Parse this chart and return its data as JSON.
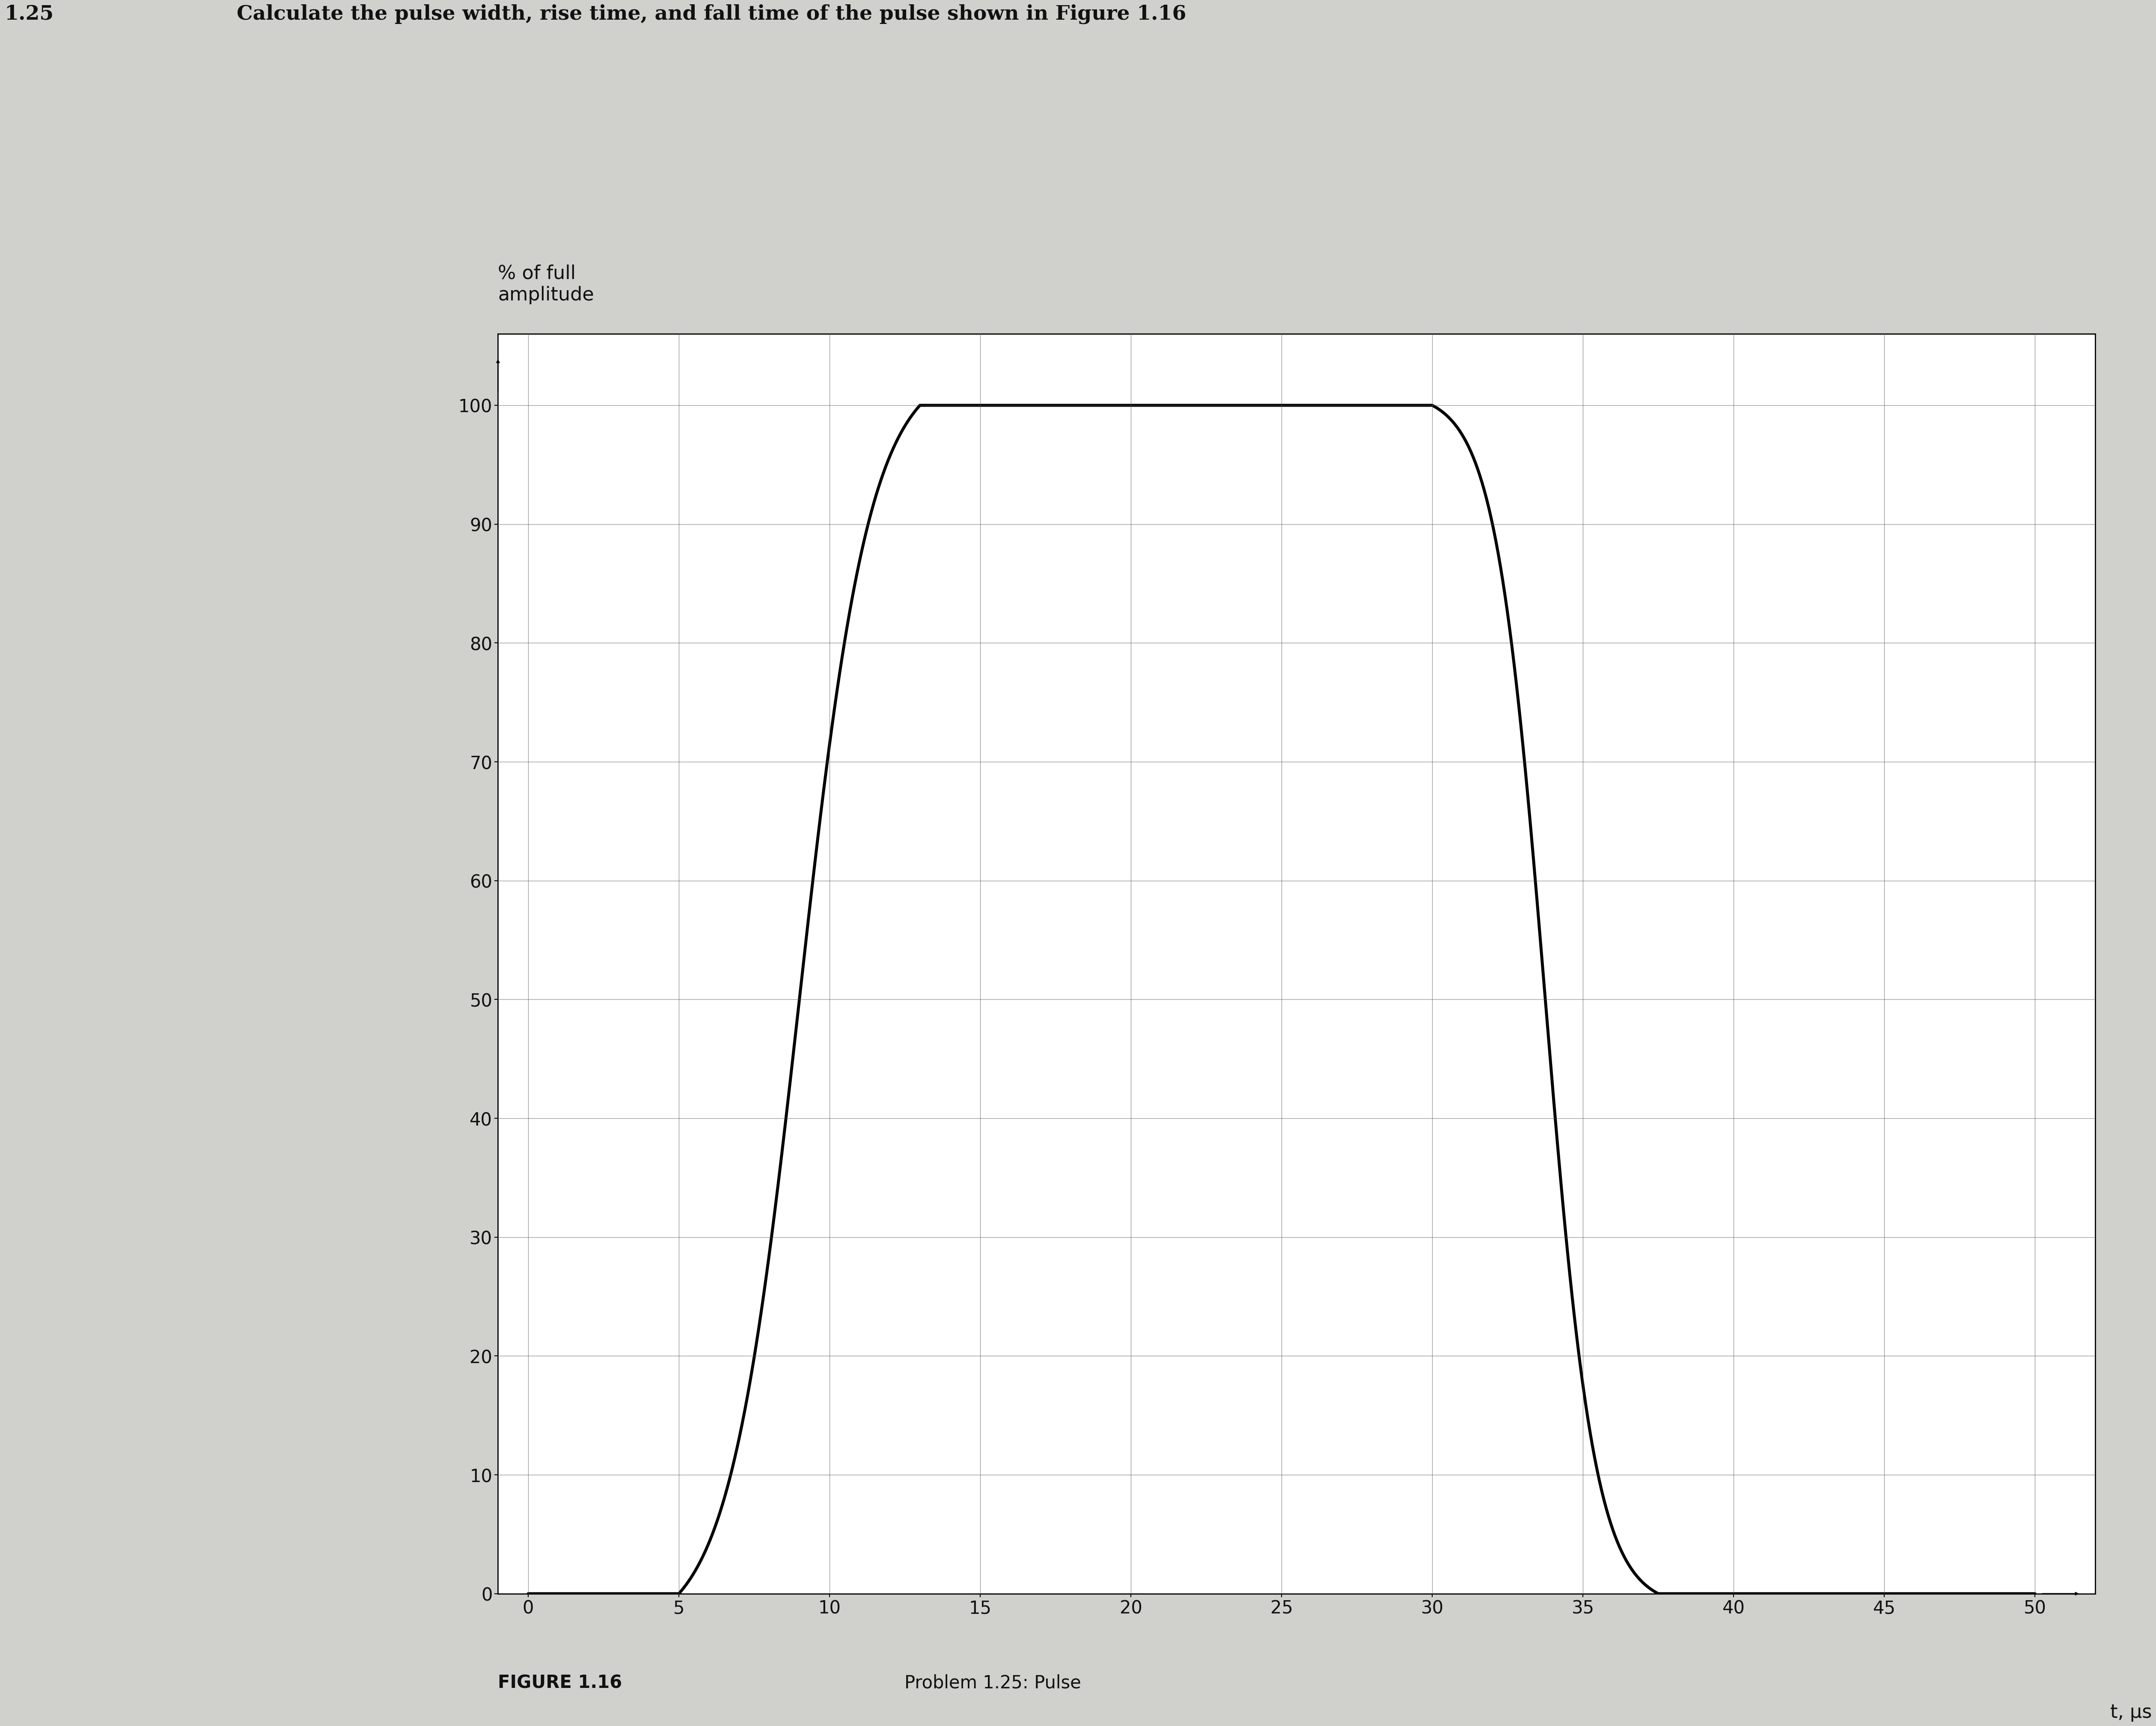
{
  "problem_number": "1.25",
  "problem_text": "Calculate the pulse width, rise time, and fall time of the pulse shown in Figure 1.16",
  "ylabel": "% of full\namplitude",
  "xlabel": "t, μs",
  "figure_label": "FIGURE 1.16",
  "figure_caption": "Problem 1.25: Pulse",
  "yticks": [
    0,
    10,
    20,
    30,
    40,
    50,
    60,
    70,
    80,
    90,
    100
  ],
  "xticks": [
    0,
    5,
    10,
    15,
    20,
    25,
    30,
    35,
    40,
    45,
    50
  ],
  "xlim": [
    -1,
    52
  ],
  "ylim": [
    0,
    106
  ],
  "bg_color": "#d0d0cc",
  "plot_bg_color": "#ffffff",
  "line_color": "#000000",
  "grid_color": "#555555",
  "text_color": "#111111",
  "rise_start": 5.0,
  "rise_end": 13.0,
  "fall_start": 30.0,
  "fall_end": 37.5,
  "title_fontsize": 36,
  "label_fontsize": 32,
  "tick_fontsize": 30,
  "caption_fontsize": 30,
  "header_fontsize": 34,
  "linewidth": 5.0
}
